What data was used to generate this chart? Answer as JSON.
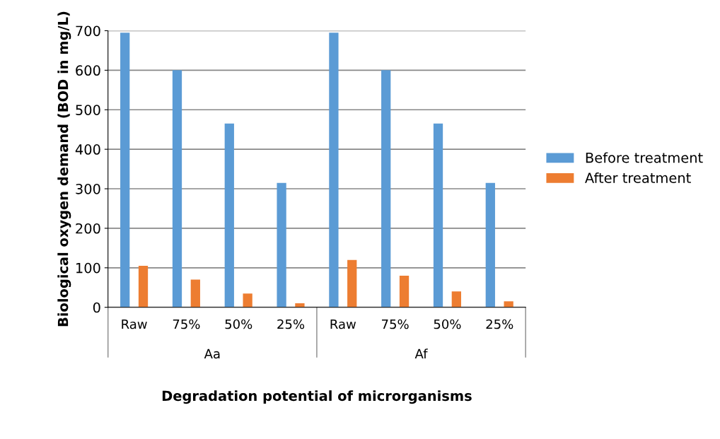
{
  "chart_data": {
    "type": "bar",
    "xlabel": "Degradation potential of microrganisms",
    "ylabel": "Biological oxygen demand (BOD in mg/L)",
    "categories": [
      "Raw",
      "75%",
      "50%",
      "25%",
      "Raw",
      "75%",
      "50%",
      "25%"
    ],
    "series": [
      {
        "name": "Before treatment",
        "color": "#5b9bd5",
        "values": [
          695,
          600,
          465,
          315,
          695,
          600,
          465,
          315
        ]
      },
      {
        "name": "After treatment",
        "color": "#ed7d31",
        "values": [
          105,
          70,
          35,
          10,
          120,
          80,
          40,
          15
        ]
      }
    ],
    "annotations": [
      "Aa",
      "Af"
    ],
    "ylim": [
      0,
      700
    ],
    "yticks": [
      0,
      100,
      200,
      300,
      400,
      500,
      600,
      700
    ],
    "grid": "y",
    "legend": "right"
  }
}
